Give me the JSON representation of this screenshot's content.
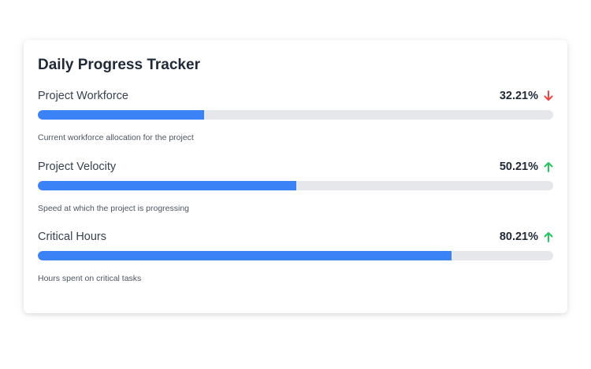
{
  "card": {
    "title": "Daily Progress Tracker"
  },
  "metrics": [
    {
      "label": "Project Workforce",
      "value_text": "32.21%",
      "progress": 0.3221,
      "trend": "down",
      "trend_icon": "arrow-down-icon",
      "trend_color": "#ef4444",
      "description": "Current workforce allocation for the project"
    },
    {
      "label": "Project Velocity",
      "value_text": "50.21%",
      "progress": 0.5021,
      "trend": "up",
      "trend_icon": "arrow-up-icon",
      "trend_color": "#22c55e",
      "description": "Speed at which the project is progressing"
    },
    {
      "label": "Critical Hours",
      "value_text": "80.21%",
      "progress": 0.8021,
      "trend": "up",
      "trend_icon": "arrow-up-icon",
      "trend_color": "#22c55e",
      "description": "Hours spent on critical tasks"
    }
  ],
  "colors": {
    "bar_fill": "#3b82f6",
    "bar_track": "#e5e7eb",
    "text_primary": "#1f2937",
    "text_secondary": "#4b5563"
  }
}
